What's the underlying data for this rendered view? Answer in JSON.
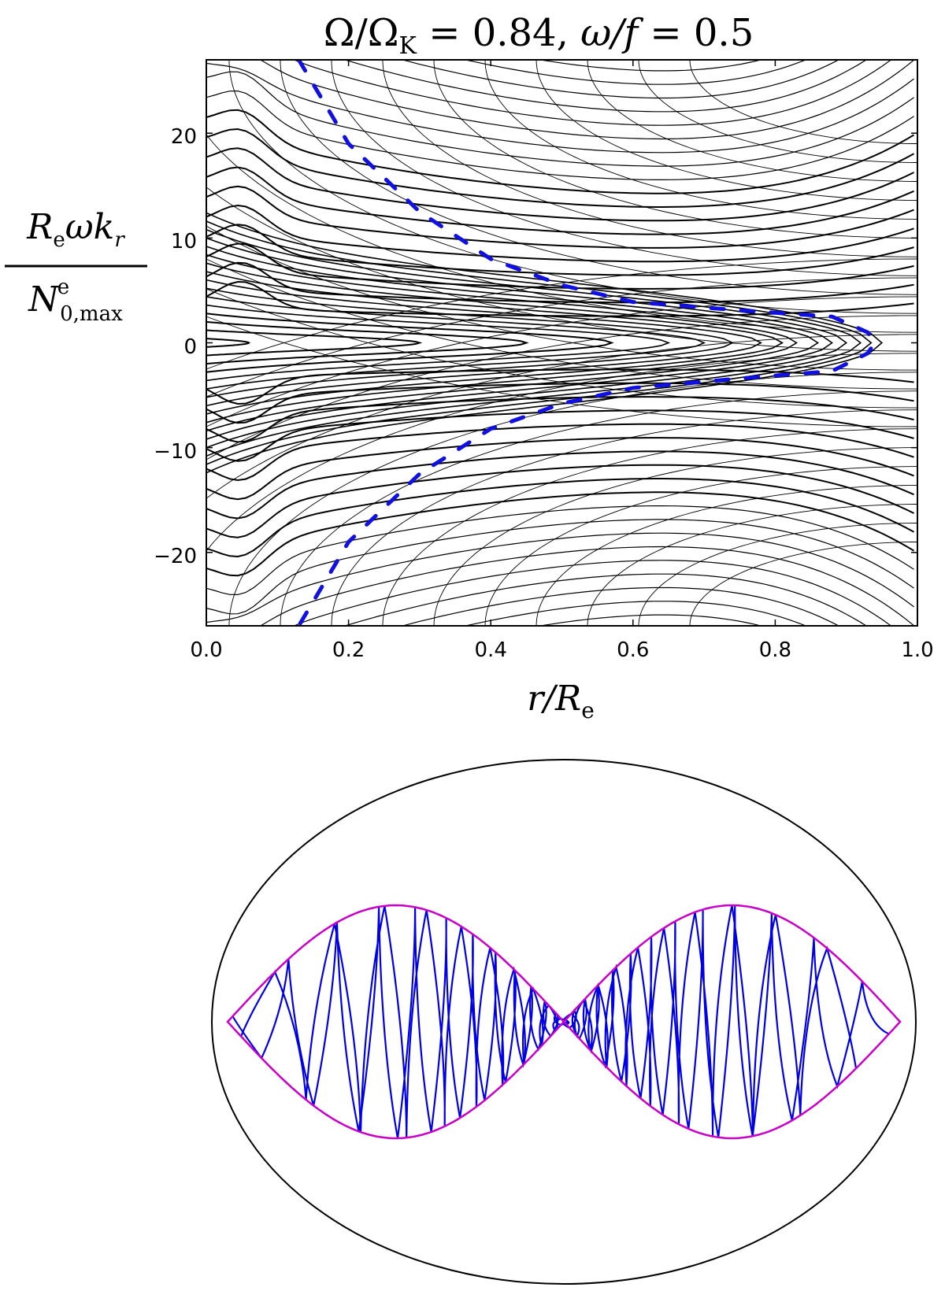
{
  "chart_data": [
    {
      "type": "line",
      "title": "Ω/ΩK = 0.84, ω/f = 0.5",
      "title_parts": {
        "lhs1": "Ω/Ω",
        "sub1": "K",
        "eq1": " = 0.84, ",
        "lhs2": "ω/f",
        "eq2": " = 0.5"
      },
      "xlabel": "r/Re",
      "xlabel_parts": {
        "main": "r/R",
        "sub": "e"
      },
      "ylabel": "Re ω kr / N0,max e",
      "ylabel_parts": {
        "num_R": "R",
        "num_R_sub": "e",
        "num_mid": "ωk",
        "num_k_sub": "r",
        "den_N": "N",
        "den_sup": "e",
        "den_sub": "0,max"
      },
      "xlim": [
        0.0,
        1.0
      ],
      "ylim": [
        -27,
        27
      ],
      "x_ticks": [
        "0.0",
        "0.2",
        "0.4",
        "0.6",
        "0.8",
        "1.0"
      ],
      "y_ticks": [
        "20",
        "10",
        "0",
        "−10",
        "−20"
      ],
      "y_tick_values": [
        20,
        10,
        0,
        -10,
        -20
      ],
      "grid": false,
      "colors": {
        "contours": "#000000",
        "dashed_curve": "#1010e0"
      },
      "series": [
        {
          "style": "dashed",
          "points": [
            [
              0.13,
              27
            ],
            [
              0.2,
              19
            ],
            [
              0.3,
              12.5
            ],
            [
              0.4,
              8
            ],
            [
              0.5,
              5.5
            ],
            [
              0.6,
              3.9
            ],
            [
              0.75,
              3.1
            ],
            [
              0.88,
              2.5
            ],
            [
              0.93,
              1.0
            ],
            [
              0.94,
              0
            ],
            [
              0.93,
              -1.0
            ],
            [
              0.88,
              -2.7
            ],
            [
              0.75,
              -3.4
            ],
            [
              0.6,
              -4.3
            ],
            [
              0.5,
              -5.8
            ],
            [
              0.4,
              -8.2
            ],
            [
              0.3,
              -12.5
            ],
            [
              0.2,
              -19
            ],
            [
              0.13,
              -27
            ]
          ]
        }
      ]
    },
    {
      "type": "diagram",
      "colors": {
        "outline": "#000000",
        "boundary": "#c800c8",
        "rays": "#0000e6"
      }
    }
  ]
}
